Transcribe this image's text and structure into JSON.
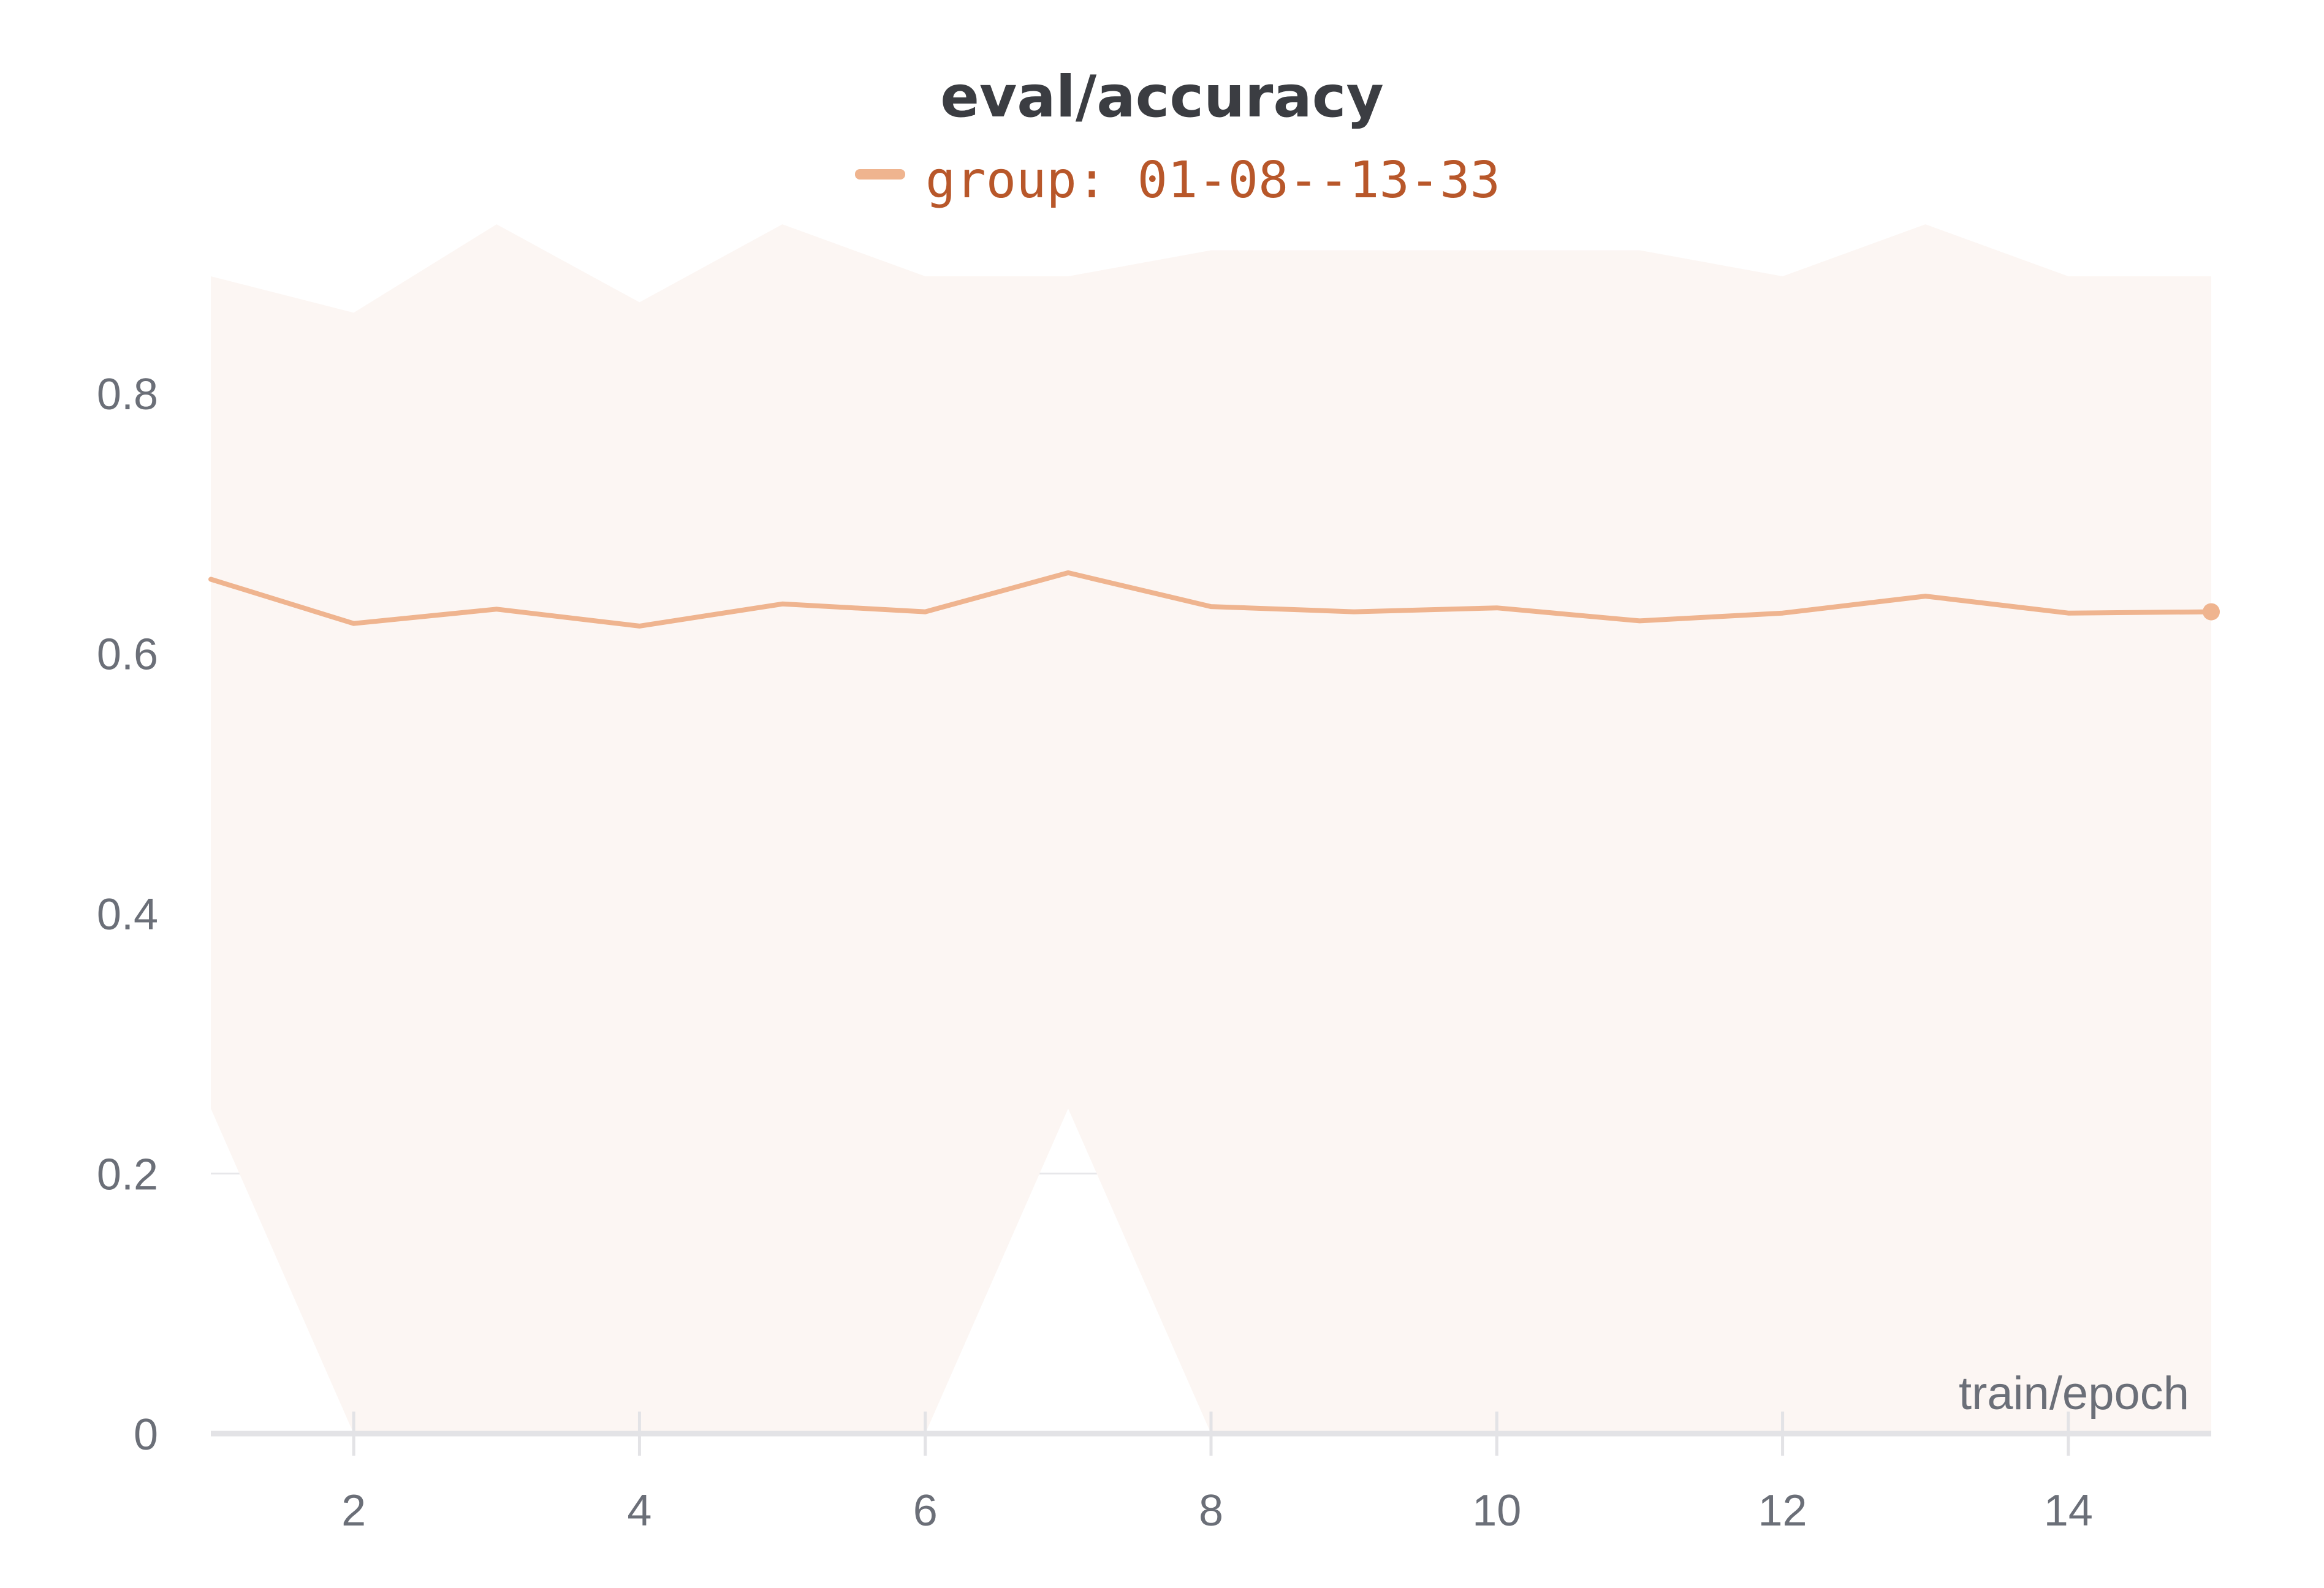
{
  "chart_data": {
    "type": "line",
    "title": "eval/accuracy",
    "xlabel": "train/epoch",
    "ylabel": "",
    "xlim": [
      1,
      15
    ],
    "ylim": [
      0,
      0.9
    ],
    "xticks": [
      2,
      4,
      6,
      8,
      10,
      12,
      14
    ],
    "yticks": [
      0,
      0.2,
      0.4,
      0.6,
      0.8
    ],
    "ytick_labels": [
      "0",
      "0.2",
      "0.4",
      "0.6",
      "0.8"
    ],
    "grid": "horizontal",
    "legend_position": "top-center",
    "series": [
      {
        "name": "group: 01-08--13-33",
        "color": "#efb48f",
        "band_color": "#fcf6f3",
        "x": [
          1,
          2,
          3,
          4,
          5,
          6,
          7,
          8,
          9,
          10,
          11,
          12,
          13,
          14,
          15
        ],
        "y": [
          0.657,
          0.623,
          0.634,
          0.621,
          0.638,
          0.632,
          0.662,
          0.636,
          0.632,
          0.635,
          0.625,
          0.631,
          0.644,
          0.631,
          0.632
        ],
        "band_upper": [
          0.89,
          0.862,
          0.93,
          0.87,
          0.93,
          0.89,
          0.89,
          0.91,
          0.91,
          0.91,
          0.91,
          0.89,
          0.93,
          0.89,
          0.89
        ],
        "band_lower": [
          0.25,
          0.0,
          0.0,
          0.0,
          0.0,
          0.0,
          0.25,
          0.0,
          0.0,
          0.0,
          0.0,
          0.0,
          0.0,
          0.0,
          0.0
        ]
      }
    ]
  }
}
